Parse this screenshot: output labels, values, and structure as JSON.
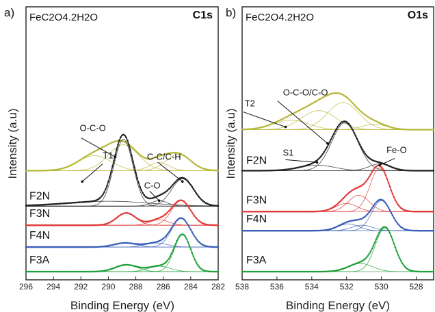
{
  "chart_data": [
    {
      "type": "line",
      "panel_label": "a)",
      "region_label": "C1s",
      "compound_label": "FeC2O4.2H2O",
      "xlabel": "Binding Energy (eV)",
      "ylabel": "Intensity (a.u)",
      "xlim": [
        296,
        282
      ],
      "x_reversed": true,
      "xticks": [
        296,
        294,
        292,
        290,
        288,
        286,
        284,
        282
      ],
      "y_ticks_shown": false,
      "grid": false,
      "series": [
        {
          "name": "",
          "color": "#b8b83a",
          "baseline": 0.6,
          "peaks": [
            [
              291.0,
              0.055,
              1.2
            ],
            [
              288.9,
              0.095,
              1.1
            ],
            [
              286.3,
              0.03,
              0.7
            ],
            [
              284.9,
              0.06,
              0.9
            ]
          ]
        },
        {
          "name": "F2N",
          "color": "#222222",
          "baseline": 0.73,
          "peaks": [
            [
              288.9,
              0.245,
              0.7
            ],
            [
              286.3,
              0.02,
              0.6
            ],
            [
              284.6,
              0.1,
              0.8
            ]
          ],
          "background": [
            [
              290.0,
              0.018,
              3.0
            ]
          ]
        },
        {
          "name": "F3N",
          "color": "#e03a3a",
          "baseline": 0.8,
          "peaks": [
            [
              288.7,
              0.045,
              0.7
            ],
            [
              286.3,
              0.02,
              0.7
            ],
            [
              284.7,
              0.09,
              0.7
            ]
          ]
        },
        {
          "name": "F4N",
          "color": "#3a5fb8",
          "baseline": 0.88,
          "peaks": [
            [
              288.8,
              0.015,
              0.8
            ],
            [
              286.5,
              0.015,
              0.8
            ],
            [
              284.7,
              0.105,
              0.7
            ]
          ]
        },
        {
          "name": "F3A",
          "color": "#1fa03a",
          "baseline": 0.97,
          "peaks": [
            [
              288.7,
              0.025,
              0.8
            ],
            [
              286.3,
              0.02,
              0.8
            ],
            [
              284.6,
              0.135,
              0.6
            ]
          ]
        }
      ],
      "annotations": [
        {
          "text": "T1",
          "target": [
            291.9,
            0.64
          ]
        },
        {
          "text": "O-C-O",
          "target": [
            289.5,
            0.55
          ]
        },
        {
          "text": "C-O",
          "target": [
            286.3,
            0.71
          ]
        },
        {
          "text": "C-C/C-H",
          "target": [
            284.6,
            0.64
          ]
        }
      ]
    },
    {
      "type": "line",
      "panel_label": "b)",
      "region_label": "O1s",
      "compound_label": "FeC2O4.2H2O",
      "xlabel": "Binding Energy (eV)",
      "ylabel": "Intensity (a.u)",
      "xlim": [
        538,
        527
      ],
      "x_reversed": true,
      "xticks": [
        538,
        536,
        534,
        532,
        530,
        528
      ],
      "y_ticks_shown": false,
      "grid": false,
      "series": [
        {
          "name": "",
          "color": "#b8b83a",
          "baseline": 0.45,
          "peaks": [
            [
              535.2,
              0.035,
              1.0
            ],
            [
              533.6,
              0.07,
              1.0
            ],
            [
              532.2,
              0.1,
              0.9
            ],
            [
              530.4,
              0.02,
              0.7
            ]
          ]
        },
        {
          "name": "F2N",
          "color": "#222222",
          "baseline": 0.6,
          "peaks": [
            [
              533.7,
              0.02,
              1.0
            ],
            [
              532.1,
              0.175,
              0.75
            ],
            [
              530.1,
              0.025,
              0.6
            ]
          ]
        },
        {
          "name": "F3N",
          "color": "#e03a3a",
          "baseline": 0.75,
          "peaks": [
            [
              532.0,
              0.03,
              0.6
            ],
            [
              531.3,
              0.06,
              0.6
            ],
            [
              530.1,
              0.16,
              0.55
            ]
          ]
        },
        {
          "name": "F4N",
          "color": "#3a5fb8",
          "baseline": 0.82,
          "peaks": [
            [
              531.9,
              0.025,
              0.6
            ],
            [
              531.1,
              0.02,
              0.6
            ],
            [
              530.0,
              0.11,
              0.55
            ]
          ]
        },
        {
          "name": "F3A",
          "color": "#1fa03a",
          "baseline": 0.97,
          "peaks": [
            [
              531.2,
              0.03,
              0.7
            ],
            [
              529.8,
              0.16,
              0.55
            ]
          ]
        }
      ],
      "annotations": [
        {
          "text": "T2",
          "target": [
            535.5,
            0.44
          ]
        },
        {
          "text": "S1",
          "target": [
            533.7,
            0.57
          ]
        },
        {
          "text": "O-C-O/C-O",
          "target": [
            533.1,
            0.5
          ]
        },
        {
          "text": "Fe-O",
          "target": [
            530.1,
            0.58
          ]
        }
      ]
    }
  ]
}
